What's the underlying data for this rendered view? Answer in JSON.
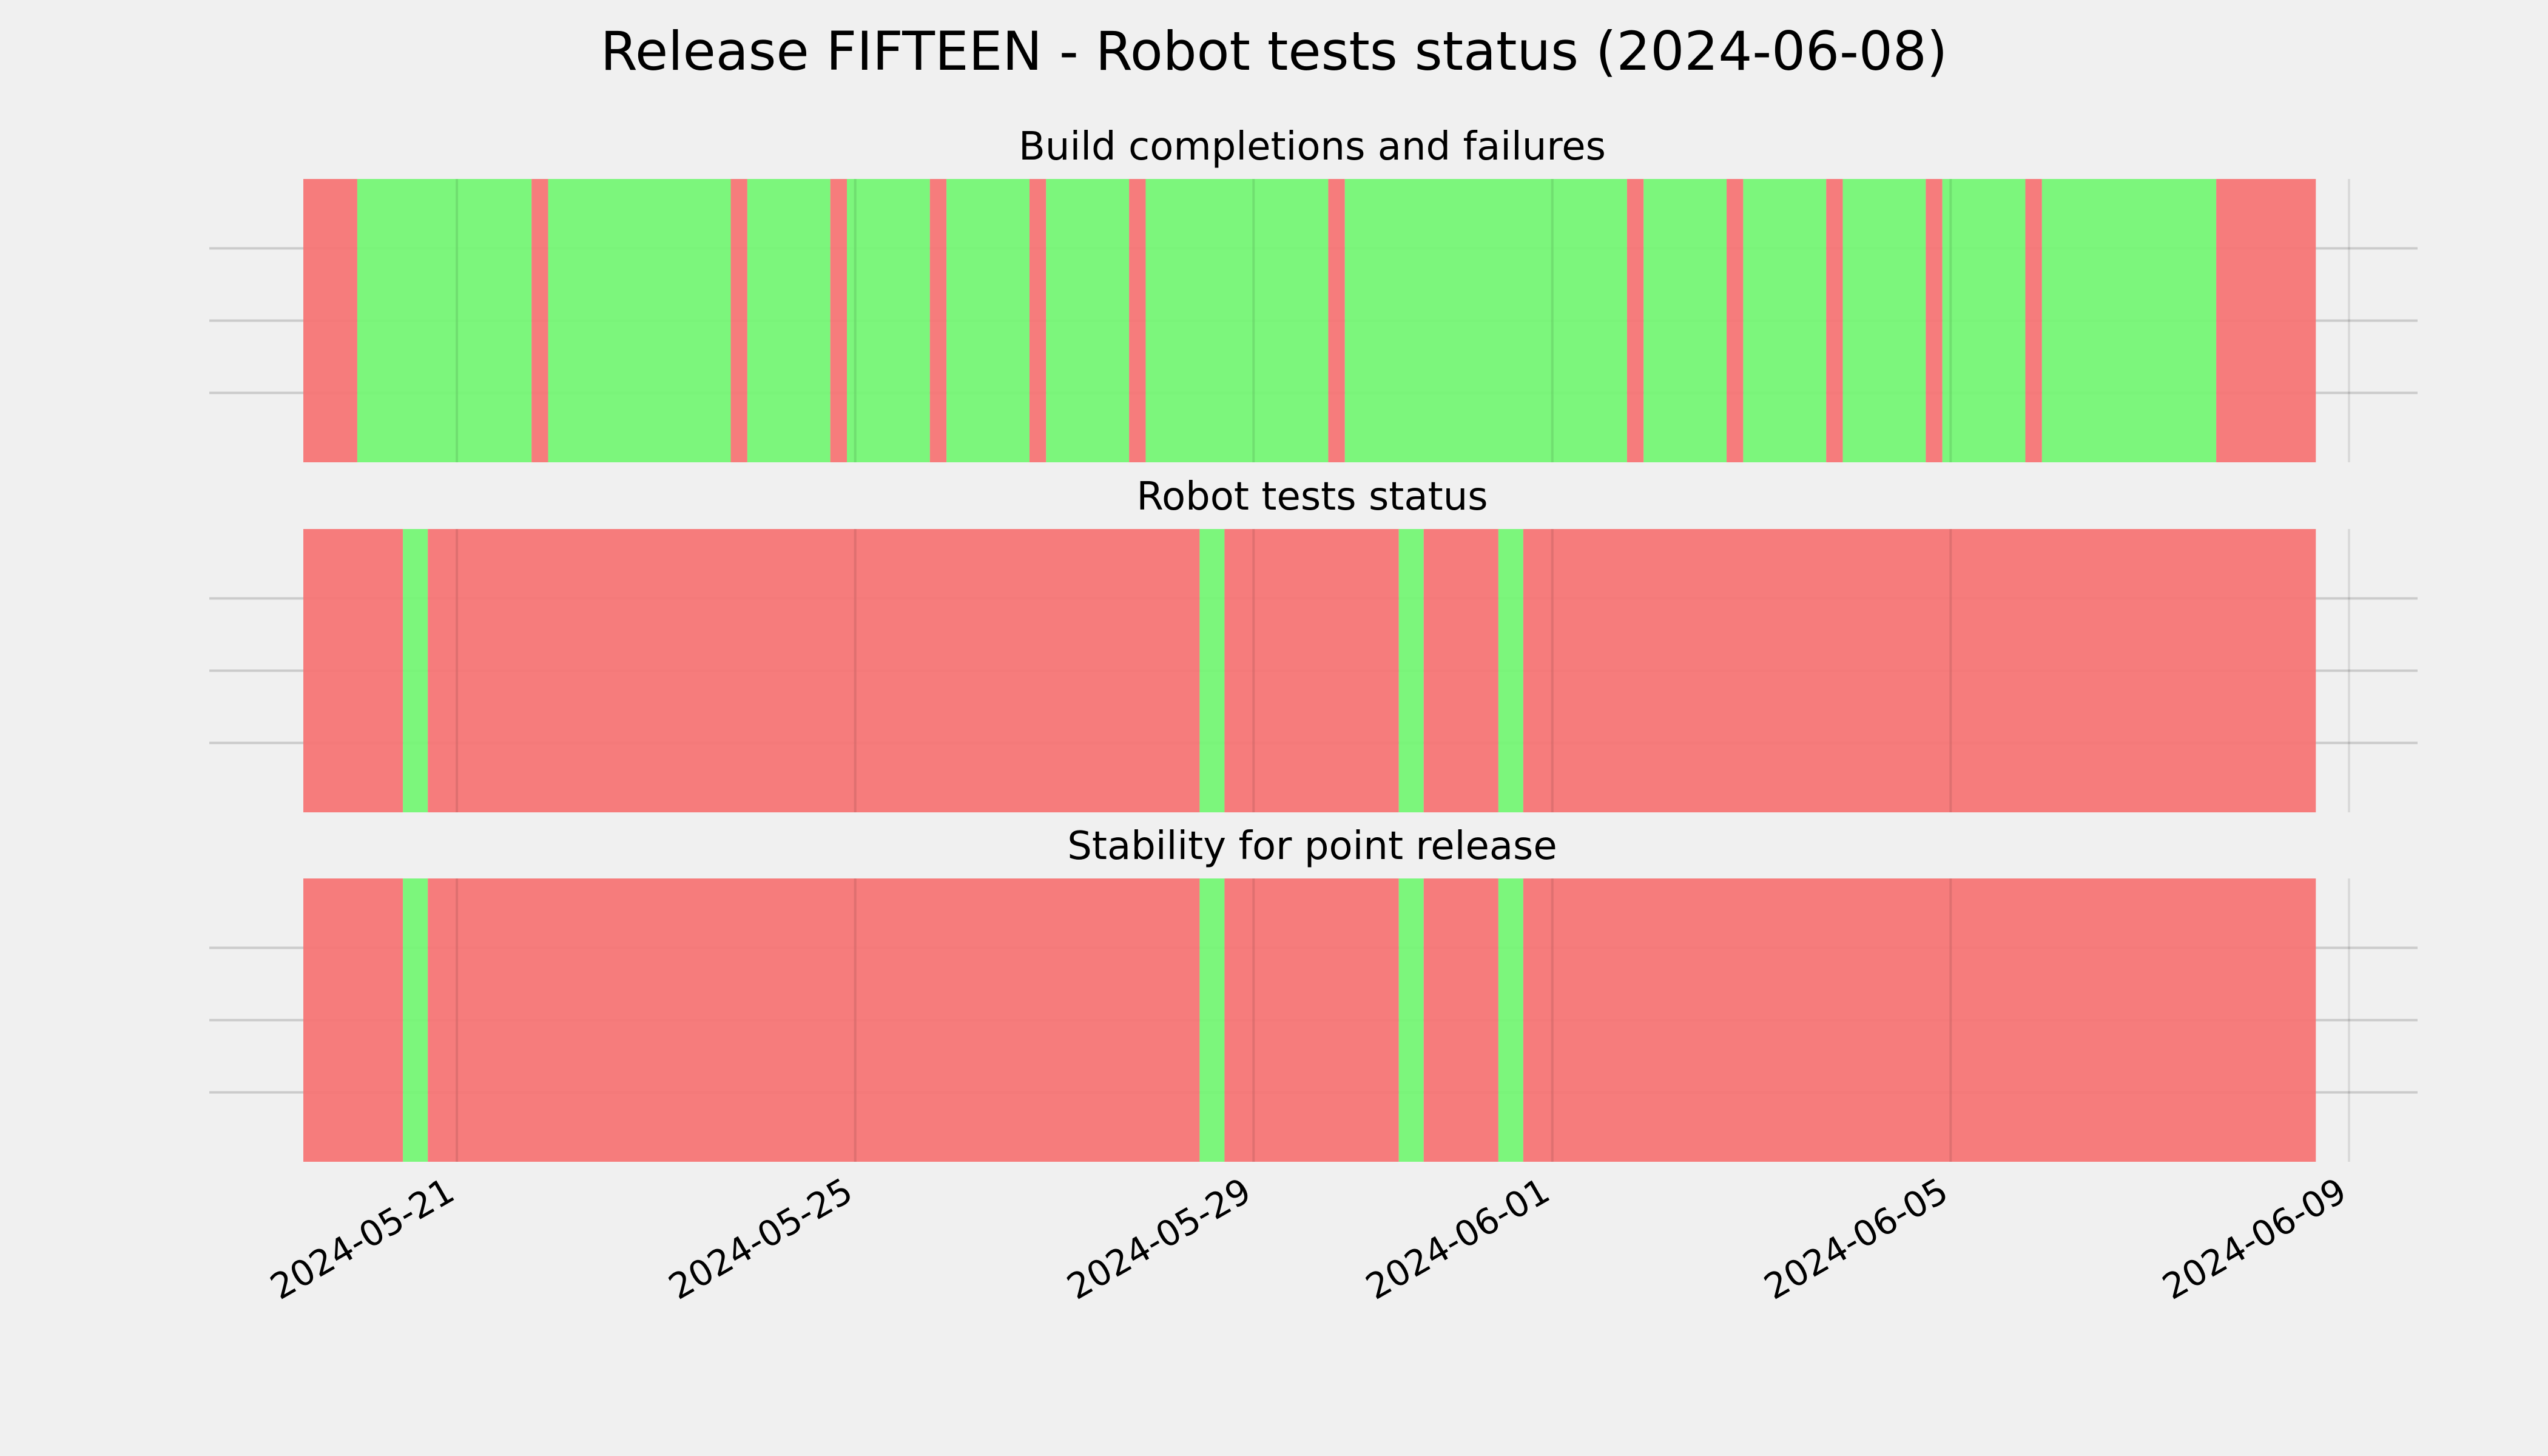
{
  "title": "Release FIFTEEN - Robot tests status (2024-06-08)",
  "colors": {
    "pass": "#75f575",
    "fail": "#f57575",
    "background": "#f0f0f0",
    "grid": "#cbcbcb"
  },
  "chart_data": {
    "type": "timeline",
    "grid": true,
    "xlim": [
      "2024-05-19T11:00",
      "2024-06-09T00:00"
    ],
    "x_tick_labels": [
      "2024-05-21",
      "2024-05-25",
      "2024-05-29",
      "2024-06-01",
      "2024-06-05",
      "2024-06-09"
    ],
    "panels": [
      {
        "title": "Build completions and failures",
        "segments": [
          {
            "start": "2024-05-19T11:00",
            "end": "2024-05-20T00:00",
            "status": "fail"
          },
          {
            "start": "2024-05-20T00:00",
            "end": "2024-05-21T18:00",
            "status": "pass"
          },
          {
            "start": "2024-05-21T18:00",
            "end": "2024-05-21T22:00",
            "status": "fail"
          },
          {
            "start": "2024-05-21T22:00",
            "end": "2024-05-23T18:00",
            "status": "pass"
          },
          {
            "start": "2024-05-23T18:00",
            "end": "2024-05-23T22:00",
            "status": "fail"
          },
          {
            "start": "2024-05-23T22:00",
            "end": "2024-05-24T18:00",
            "status": "pass"
          },
          {
            "start": "2024-05-24T18:00",
            "end": "2024-05-24T22:00",
            "status": "fail"
          },
          {
            "start": "2024-05-24T22:00",
            "end": "2024-05-25T18:00",
            "status": "pass"
          },
          {
            "start": "2024-05-25T18:00",
            "end": "2024-05-25T22:00",
            "status": "fail"
          },
          {
            "start": "2024-05-25T22:00",
            "end": "2024-05-26T18:00",
            "status": "pass"
          },
          {
            "start": "2024-05-26T18:00",
            "end": "2024-05-26T22:00",
            "status": "fail"
          },
          {
            "start": "2024-05-26T22:00",
            "end": "2024-05-27T18:00",
            "status": "pass"
          },
          {
            "start": "2024-05-27T18:00",
            "end": "2024-05-27T22:00",
            "status": "fail"
          },
          {
            "start": "2024-05-27T22:00",
            "end": "2024-05-29T18:00",
            "status": "pass"
          },
          {
            "start": "2024-05-29T18:00",
            "end": "2024-05-29T22:00",
            "status": "fail"
          },
          {
            "start": "2024-05-29T22:00",
            "end": "2024-06-01T18:00",
            "status": "pass"
          },
          {
            "start": "2024-06-01T18:00",
            "end": "2024-06-01T22:00",
            "status": "fail"
          },
          {
            "start": "2024-06-01T22:00",
            "end": "2024-06-02T18:00",
            "status": "pass"
          },
          {
            "start": "2024-06-02T18:00",
            "end": "2024-06-02T22:00",
            "status": "fail"
          },
          {
            "start": "2024-06-02T22:00",
            "end": "2024-06-03T18:00",
            "status": "pass"
          },
          {
            "start": "2024-06-03T18:00",
            "end": "2024-06-03T22:00",
            "status": "fail"
          },
          {
            "start": "2024-06-03T22:00",
            "end": "2024-06-04T18:00",
            "status": "pass"
          },
          {
            "start": "2024-06-04T18:00",
            "end": "2024-06-04T22:00",
            "status": "fail"
          },
          {
            "start": "2024-06-04T22:00",
            "end": "2024-06-05T18:00",
            "status": "pass"
          },
          {
            "start": "2024-06-05T18:00",
            "end": "2024-06-05T22:00",
            "status": "fail"
          },
          {
            "start": "2024-06-05T22:00",
            "end": "2024-06-07T16:00",
            "status": "pass"
          },
          {
            "start": "2024-06-07T16:00",
            "end": "2024-06-08T16:00",
            "status": "fail"
          }
        ]
      },
      {
        "title": "Robot tests status",
        "segments": [
          {
            "start": "2024-05-19T11:00",
            "end": "2024-05-20T11:00",
            "status": "fail"
          },
          {
            "start": "2024-05-20T11:00",
            "end": "2024-05-20T17:00",
            "status": "pass"
          },
          {
            "start": "2024-05-20T17:00",
            "end": "2024-05-28T11:00",
            "status": "fail"
          },
          {
            "start": "2024-05-28T11:00",
            "end": "2024-05-28T17:00",
            "status": "pass"
          },
          {
            "start": "2024-05-28T17:00",
            "end": "2024-05-30T11:00",
            "status": "fail"
          },
          {
            "start": "2024-05-30T11:00",
            "end": "2024-05-30T17:00",
            "status": "pass"
          },
          {
            "start": "2024-05-30T17:00",
            "end": "2024-05-31T11:00",
            "status": "fail"
          },
          {
            "start": "2024-05-31T11:00",
            "end": "2024-05-31T17:00",
            "status": "pass"
          },
          {
            "start": "2024-05-31T17:00",
            "end": "2024-06-08T16:00",
            "status": "fail"
          }
        ]
      },
      {
        "title": "Stability for point release",
        "segments": [
          {
            "start": "2024-05-19T11:00",
            "end": "2024-05-20T11:00",
            "status": "fail"
          },
          {
            "start": "2024-05-20T11:00",
            "end": "2024-05-20T17:00",
            "status": "pass"
          },
          {
            "start": "2024-05-20T17:00",
            "end": "2024-05-28T11:00",
            "status": "fail"
          },
          {
            "start": "2024-05-28T11:00",
            "end": "2024-05-28T17:00",
            "status": "pass"
          },
          {
            "start": "2024-05-28T17:00",
            "end": "2024-05-30T11:00",
            "status": "fail"
          },
          {
            "start": "2024-05-30T11:00",
            "end": "2024-05-30T17:00",
            "status": "pass"
          },
          {
            "start": "2024-05-30T17:00",
            "end": "2024-05-31T11:00",
            "status": "fail"
          },
          {
            "start": "2024-05-31T11:00",
            "end": "2024-05-31T17:00",
            "status": "pass"
          },
          {
            "start": "2024-05-31T17:00",
            "end": "2024-06-08T16:00",
            "status": "fail"
          }
        ]
      }
    ]
  }
}
